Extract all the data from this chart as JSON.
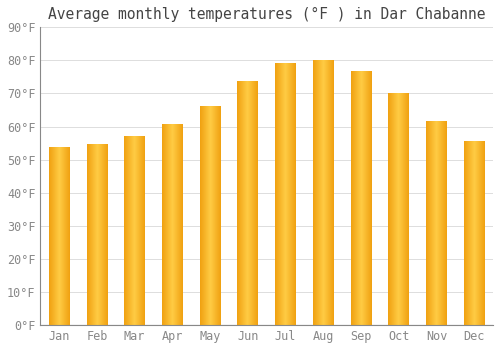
{
  "title": "Average monthly temperatures (°F ) in Dar Chabanne",
  "months": [
    "Jan",
    "Feb",
    "Mar",
    "Apr",
    "May",
    "Jun",
    "Jul",
    "Aug",
    "Sep",
    "Oct",
    "Nov",
    "Dec"
  ],
  "values": [
    53.5,
    54.5,
    57,
    60.5,
    66,
    73.5,
    79,
    80,
    76.5,
    70,
    61.5,
    55.5
  ],
  "bar_color_left": "#F0A010",
  "bar_color_mid": "#FFCC44",
  "bar_color_right": "#F0A010",
  "background_color": "#FFFFFF",
  "plot_bg_color": "#F5F5F5",
  "ylim": [
    0,
    90
  ],
  "yticks": [
    0,
    10,
    20,
    30,
    40,
    50,
    60,
    70,
    80,
    90
  ],
  "grid_color": "#DDDDDD",
  "title_fontsize": 10.5,
  "tick_fontsize": 8.5,
  "bar_width": 0.55
}
